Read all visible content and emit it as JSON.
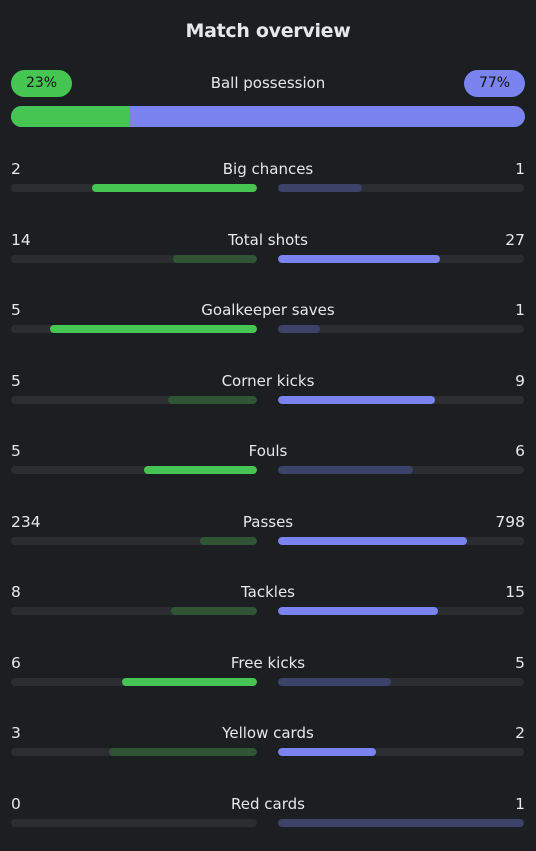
{
  "title": "Match overview",
  "possession": {
    "label": "Ball possession",
    "home": "23%",
    "away": "77%",
    "home_fraction": 0.23
  },
  "colors": {
    "home_win": "#46c552",
    "home_lose": "#2f5534",
    "away_win": "#7b83f0",
    "away_lose": "#3c4268",
    "track": "#2a2e31",
    "background": "#1b1f21"
  },
  "stats": [
    {
      "label": "Big chances",
      "home": "2",
      "away": "1",
      "home_fill": 0.67,
      "away_fill": 0.34,
      "winner": "home"
    },
    {
      "label": "Total shots",
      "home": "14",
      "away": "27",
      "home_fill": 0.34,
      "away_fill": 0.66,
      "winner": "away"
    },
    {
      "label": "Goalkeeper saves",
      "home": "5",
      "away": "1",
      "home_fill": 0.84,
      "away_fill": 0.17,
      "winner": "home"
    },
    {
      "label": "Corner kicks",
      "home": "5",
      "away": "9",
      "home_fill": 0.36,
      "away_fill": 0.64,
      "winner": "away"
    },
    {
      "label": "Fouls",
      "home": "5",
      "away": "6",
      "home_fill": 0.46,
      "away_fill": 0.55,
      "winner": "home"
    },
    {
      "label": "Passes",
      "home": "234",
      "away": "798",
      "home_fill": 0.23,
      "away_fill": 0.77,
      "winner": "away"
    },
    {
      "label": "Tackles",
      "home": "8",
      "away": "15",
      "home_fill": 0.35,
      "away_fill": 0.65,
      "winner": "away"
    },
    {
      "label": "Free kicks",
      "home": "6",
      "away": "5",
      "home_fill": 0.55,
      "away_fill": 0.46,
      "winner": "home"
    },
    {
      "label": "Yellow cards",
      "home": "3",
      "away": "2",
      "home_fill": 0.6,
      "away_fill": 0.4,
      "winner": "away"
    },
    {
      "label": "Red cards",
      "home": "0",
      "away": "1",
      "home_fill": 0.0,
      "away_fill": 1.0,
      "winner": "home"
    }
  ]
}
